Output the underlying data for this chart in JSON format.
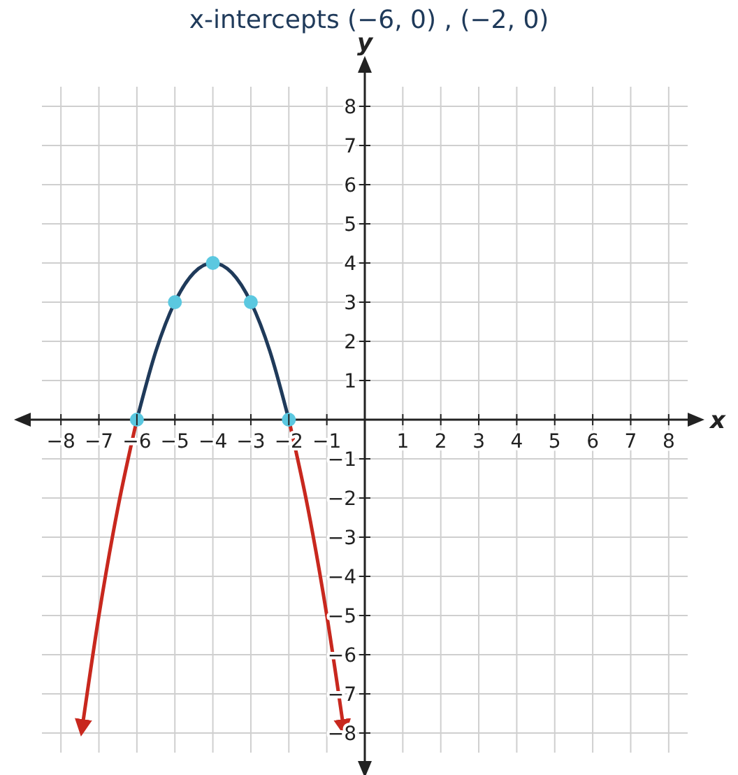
{
  "chart_data": {
    "type": "line",
    "title": "x-intercepts (−6, 0) , (−2, 0)",
    "xlabel": "x",
    "ylabel": "y",
    "xlim": [
      -8.5,
      8.5
    ],
    "ylim": [
      -8.5,
      8.5
    ],
    "xticks": [
      {
        "value": -8,
        "label": "−8"
      },
      {
        "value": -7,
        "label": "−7"
      },
      {
        "value": -6,
        "label": "−6"
      },
      {
        "value": -5,
        "label": "−5"
      },
      {
        "value": -4,
        "label": "−4"
      },
      {
        "value": -3,
        "label": "−3"
      },
      {
        "value": -2,
        "label": "−2"
      },
      {
        "value": -1,
        "label": "−1"
      },
      1,
      2,
      3,
      4,
      5,
      6,
      7,
      8
    ],
    "yticks": [
      {
        "value": -8,
        "label": "−8"
      },
      {
        "value": -7,
        "label": "−7"
      },
      {
        "value": -6,
        "label": "−6"
      },
      {
        "value": -5,
        "label": "−5"
      },
      {
        "value": -4,
        "label": "−4"
      },
      {
        "value": -3,
        "label": "−3"
      },
      {
        "value": -2,
        "label": "−2"
      },
      {
        "value": -1,
        "label": "−1"
      },
      1,
      2,
      3,
      4,
      5,
      6,
      7,
      8
    ],
    "grid": true,
    "series": [
      {
        "type": "line",
        "color": "#1f3a5a",
        "x": [
          -6,
          -5.5,
          -5,
          -4.5,
          -4,
          -3.5,
          -3,
          -2.5,
          -2
        ],
        "values": [
          0,
          1.75,
          3,
          3.75,
          4,
          3.75,
          3,
          1.75,
          0
        ]
      },
      {
        "type": "line",
        "color": "#c8281e",
        "x": [
          -6,
          -6.5,
          -7,
          -7.46
        ],
        "values": [
          0,
          -2.25,
          -5,
          -8
        ]
      },
      {
        "type": "line",
        "color": "#c8281e",
        "x": [
          -2,
          -1.5,
          -1,
          -0.54
        ],
        "values": [
          0,
          -2.25,
          -5,
          -8
        ]
      },
      {
        "type": "scatter",
        "marker": "circle",
        "color": "#5bc8e0",
        "x": [
          -6,
          -5,
          -4,
          -3,
          -2
        ],
        "values": [
          0,
          3,
          4,
          3,
          0
        ]
      }
    ]
  }
}
